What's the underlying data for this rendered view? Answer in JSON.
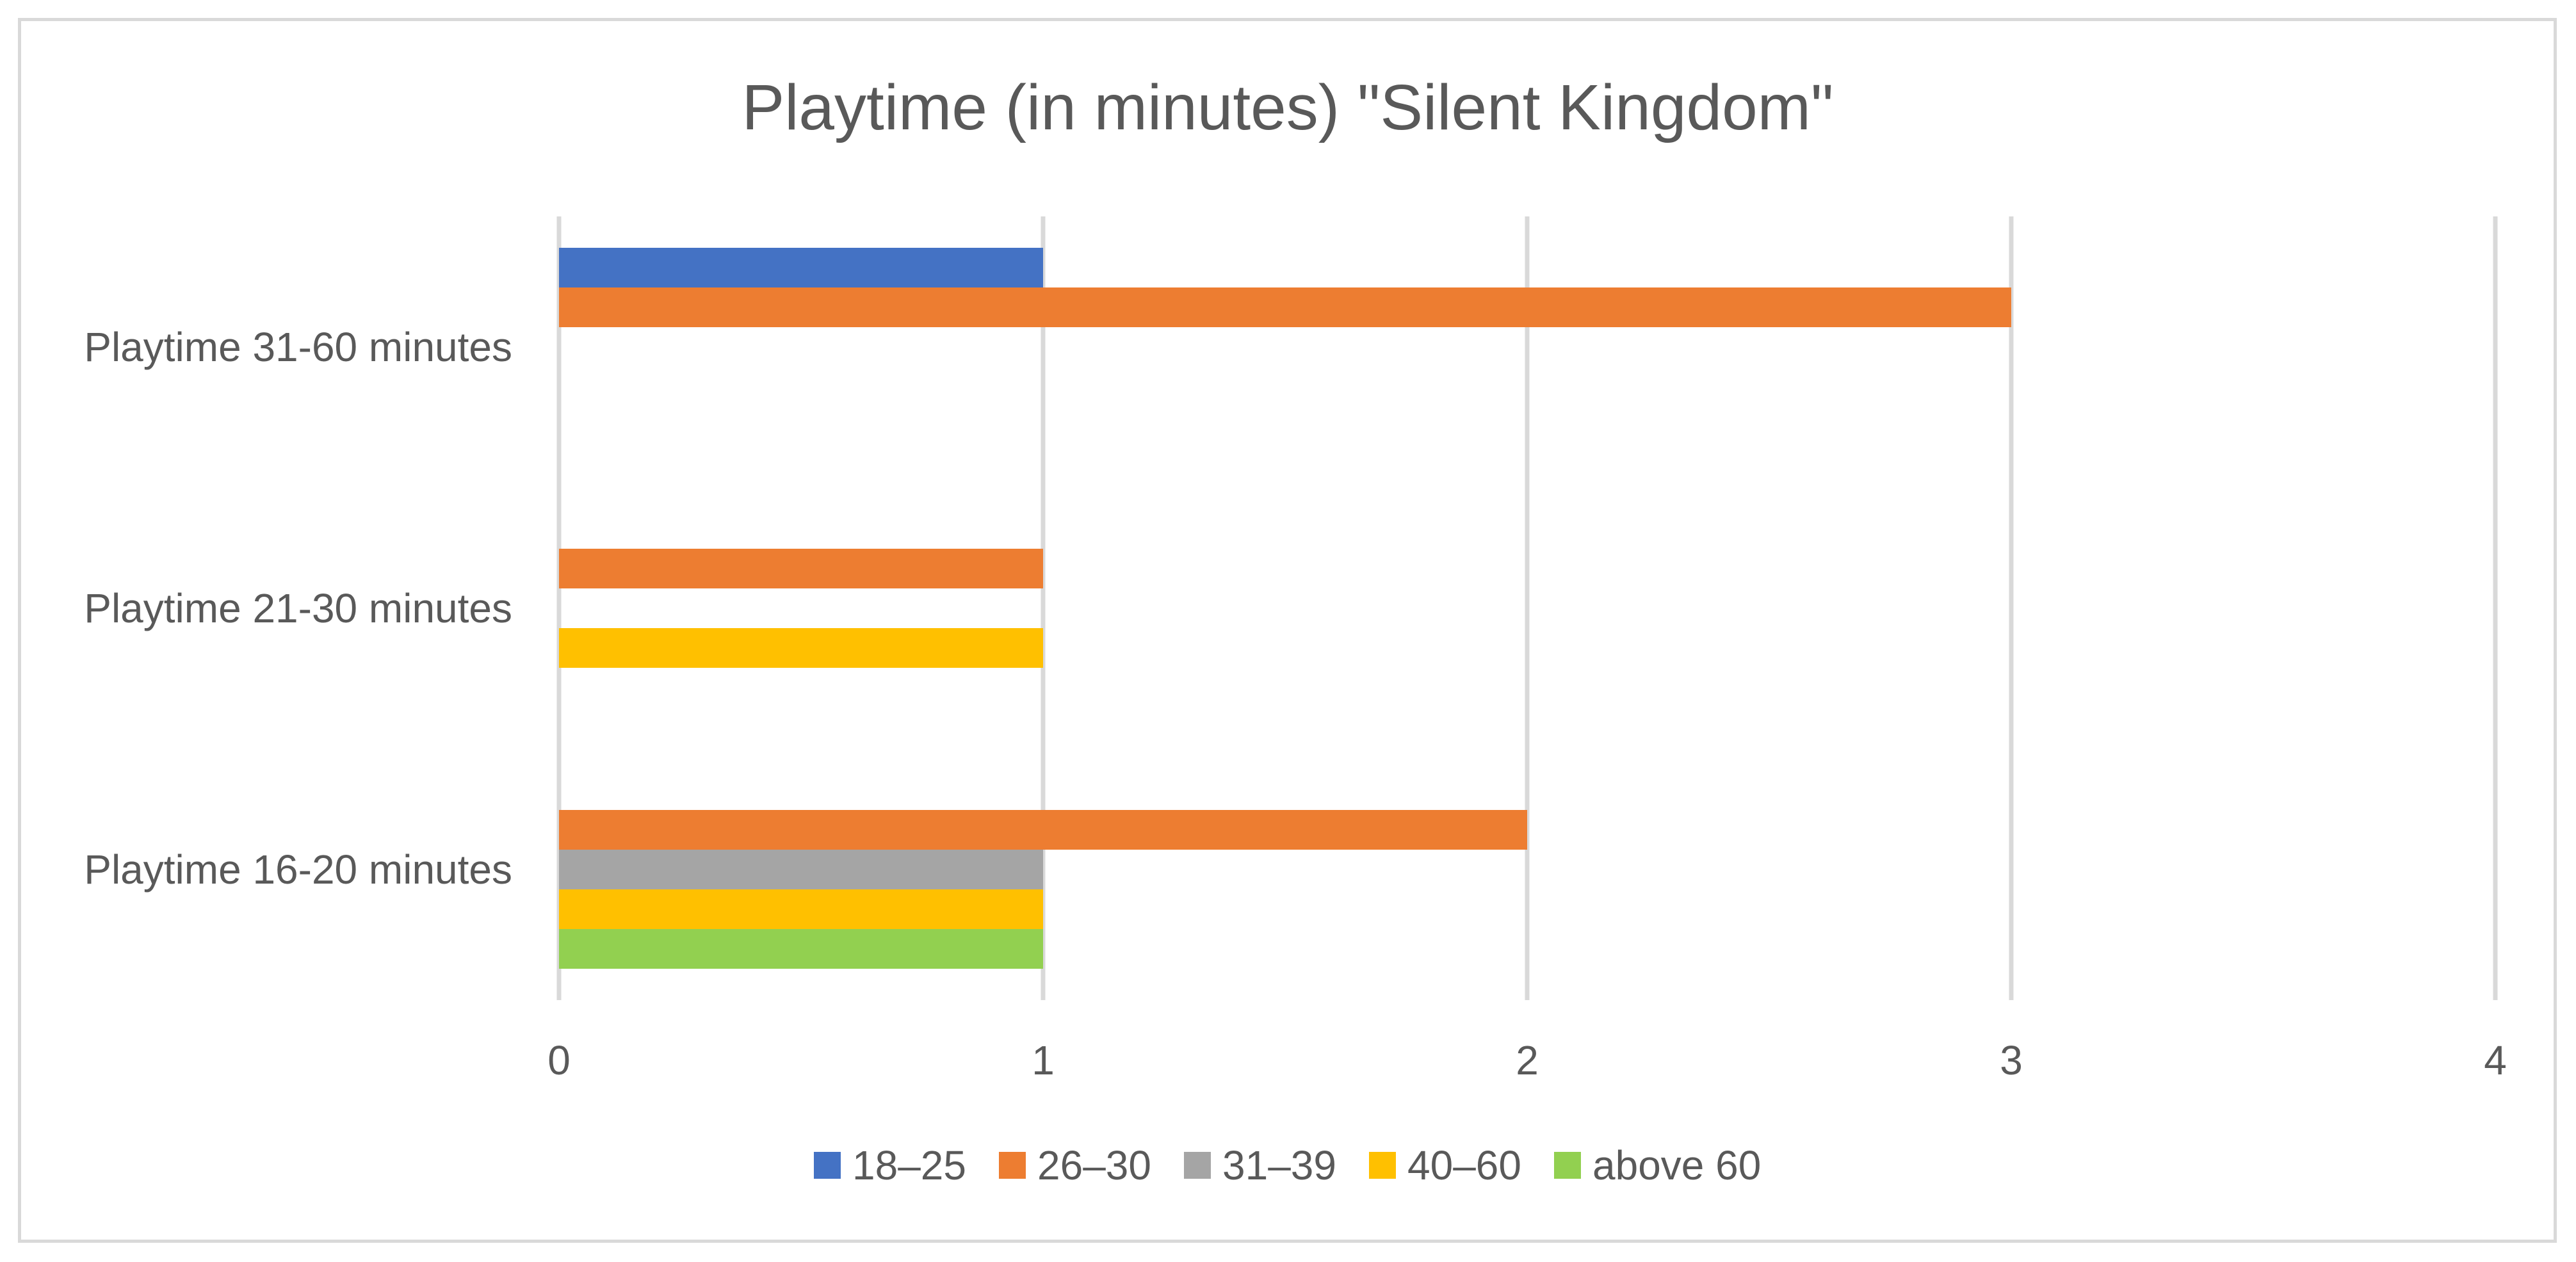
{
  "chart_data": {
    "type": "bar",
    "orientation": "horizontal",
    "title": "Playtime (in minutes) \"Silent Kingdom\"",
    "xlabel": "",
    "ylabel": "",
    "xlim": [
      0,
      4
    ],
    "x_ticks": [
      "0",
      "1",
      "2",
      "3",
      "4"
    ],
    "grid": "vertical gridlines on",
    "legend_position": "bottom",
    "categories": [
      "Playtime 16-20 minutes",
      "Playtime 21-30 minutes",
      "Playtime 31-60 minutes"
    ],
    "series": [
      {
        "name": "18–25",
        "color": "#4472c4",
        "values": [
          null,
          null,
          1
        ]
      },
      {
        "name": "26–30",
        "color": "#ed7d31",
        "values": [
          2,
          1,
          3
        ]
      },
      {
        "name": "31–39",
        "color": "#a5a5a5",
        "values": [
          1,
          null,
          null
        ]
      },
      {
        "name": "40–60",
        "color": "#ffc000",
        "values": [
          1,
          1,
          null
        ]
      },
      {
        "name": "above 60",
        "color": "#92d050",
        "values": [
          1,
          null,
          null
        ]
      }
    ]
  }
}
